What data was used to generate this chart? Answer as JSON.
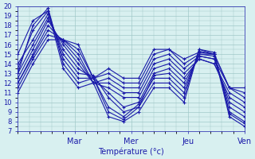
{
  "title": "Température (°c)",
  "ylabel": "",
  "xlabel": "Température (°c)",
  "bg_color": "#d8f0f0",
  "grid_color": "#a0c8c8",
  "line_color": "#1a1aaa",
  "ylim": [
    7,
    20
  ],
  "yticks": [
    7,
    8,
    9,
    10,
    11,
    12,
    13,
    14,
    15,
    16,
    17,
    18,
    19,
    20
  ],
  "day_labels": [
    "Mar",
    "Mer",
    "Jeu",
    "Ven"
  ],
  "day_positions": [
    1,
    2,
    3,
    4
  ],
  "series": [
    [
      15.0,
      18.5,
      19.5,
      13.5,
      11.5,
      12.0,
      8.5,
      8.0,
      9.0,
      11.5,
      11.5,
      10.0,
      15.5,
      15.0,
      8.5,
      7.5
    ],
    [
      13.0,
      18.0,
      19.8,
      14.0,
      12.0,
      12.5,
      9.0,
      8.2,
      9.5,
      12.0,
      12.0,
      10.5,
      15.5,
      15.2,
      8.8,
      7.8
    ],
    [
      13.5,
      17.5,
      19.5,
      14.5,
      12.5,
      12.5,
      9.5,
      8.5,
      9.8,
      12.5,
      12.5,
      11.0,
      15.3,
      15.0,
      9.0,
      8.0
    ],
    [
      14.0,
      16.5,
      19.2,
      15.0,
      13.0,
      12.8,
      10.5,
      9.0,
      9.5,
      12.8,
      13.0,
      11.5,
      15.0,
      14.8,
      9.5,
      8.5
    ],
    [
      13.0,
      16.0,
      18.8,
      15.5,
      13.5,
      12.5,
      11.0,
      9.5,
      10.0,
      13.0,
      13.5,
      12.0,
      14.8,
      14.5,
      10.0,
      9.0
    ],
    [
      12.5,
      15.5,
      18.5,
      16.0,
      14.0,
      12.0,
      11.5,
      10.5,
      10.5,
      13.5,
      14.0,
      12.5,
      14.5,
      14.0,
      10.5,
      9.5
    ],
    [
      12.0,
      15.0,
      18.0,
      16.3,
      14.5,
      12.0,
      12.0,
      11.0,
      11.0,
      14.0,
      14.5,
      13.0,
      14.5,
      14.0,
      11.0,
      10.0
    ],
    [
      12.0,
      14.8,
      17.5,
      16.5,
      15.0,
      12.0,
      12.5,
      11.5,
      11.5,
      14.5,
      15.0,
      13.5,
      14.8,
      14.5,
      11.5,
      10.5
    ],
    [
      11.5,
      14.5,
      17.0,
      16.5,
      15.5,
      12.5,
      13.0,
      12.0,
      12.0,
      15.0,
      15.5,
      14.0,
      15.0,
      15.0,
      11.5,
      11.0
    ],
    [
      11.0,
      14.0,
      16.5,
      16.5,
      16.0,
      12.5,
      13.5,
      12.5,
      12.5,
      15.5,
      15.5,
      14.5,
      15.2,
      15.0,
      11.5,
      11.5
    ]
  ]
}
